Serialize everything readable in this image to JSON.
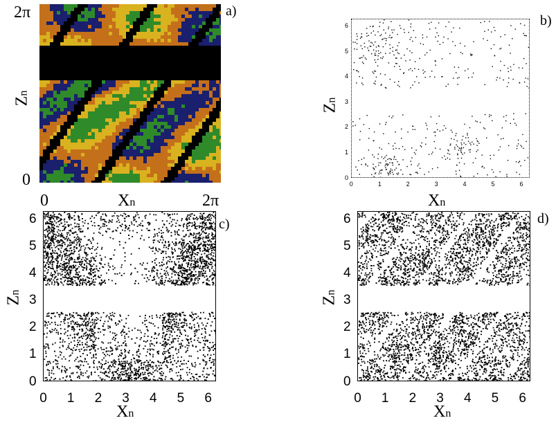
{
  "figure": {
    "panels": [
      {
        "id": "a",
        "label": "a)",
        "xlabel": "X",
        "xlabel_sub": "n",
        "ylabel": "Z",
        "ylabel_sub": "n",
        "x_ticks": [
          "0",
          "2π"
        ],
        "y_ticks": [
          "0",
          "2π"
        ]
      },
      {
        "id": "b",
        "label": "b)",
        "xlabel": "X",
        "xlabel_sub": "n",
        "ylabel": "Z",
        "ylabel_sub": "n",
        "x_ticks": [
          "0",
          "1",
          "2",
          "3",
          "4",
          "5",
          "6"
        ],
        "y_ticks": [
          "0",
          "1",
          "2",
          "3",
          "4",
          "5",
          "6"
        ]
      },
      {
        "id": "c",
        "label": "c)",
        "xlabel": "X",
        "xlabel_sub": "n",
        "ylabel": "Z",
        "ylabel_sub": "n",
        "x_ticks": [
          "0",
          "1",
          "2",
          "3",
          "4",
          "5",
          "6"
        ],
        "y_ticks": [
          "0",
          "1",
          "2",
          "3",
          "4",
          "5",
          "6"
        ]
      },
      {
        "id": "d",
        "label": "d)",
        "xlabel": "X",
        "xlabel_sub": "n",
        "ylabel": "Z",
        "ylabel_sub": "n",
        "x_ticks": [
          "0",
          "1",
          "2",
          "3",
          "4",
          "5",
          "6"
        ],
        "y_ticks": [
          "0",
          "1",
          "2",
          "3",
          "4",
          "5",
          "6"
        ]
      }
    ]
  },
  "colors": {
    "black": "#000000",
    "green": "#2f8a2a",
    "yellow": "#d9b21f",
    "orange": "#c4701a",
    "navy": "#1a1f6e"
  },
  "chart_data": [
    {
      "type": "heatmap",
      "panel": "a)",
      "xlim": [
        0,
        6.283
      ],
      "ylim": [
        0,
        6.283
      ],
      "excluded_band_z": [
        2.6,
        3.6
      ]
    },
    {
      "type": "scatter",
      "panel": "b)",
      "xlim": [
        0,
        6.3
      ],
      "ylim": [
        0,
        6.3
      ],
      "excluded_band_z": [
        2.6,
        3.6
      ]
    },
    {
      "type": "scatter",
      "panel": "c)",
      "xlim": [
        0,
        6.3
      ],
      "ylim": [
        0,
        6.3
      ],
      "excluded_band_z": [
        2.6,
        3.6
      ]
    },
    {
      "type": "scatter",
      "panel": "d)",
      "xlim": [
        0,
        6.3
      ],
      "ylim": [
        0,
        6.3
      ],
      "excluded_band_z": [
        2.6,
        3.6
      ]
    }
  ]
}
